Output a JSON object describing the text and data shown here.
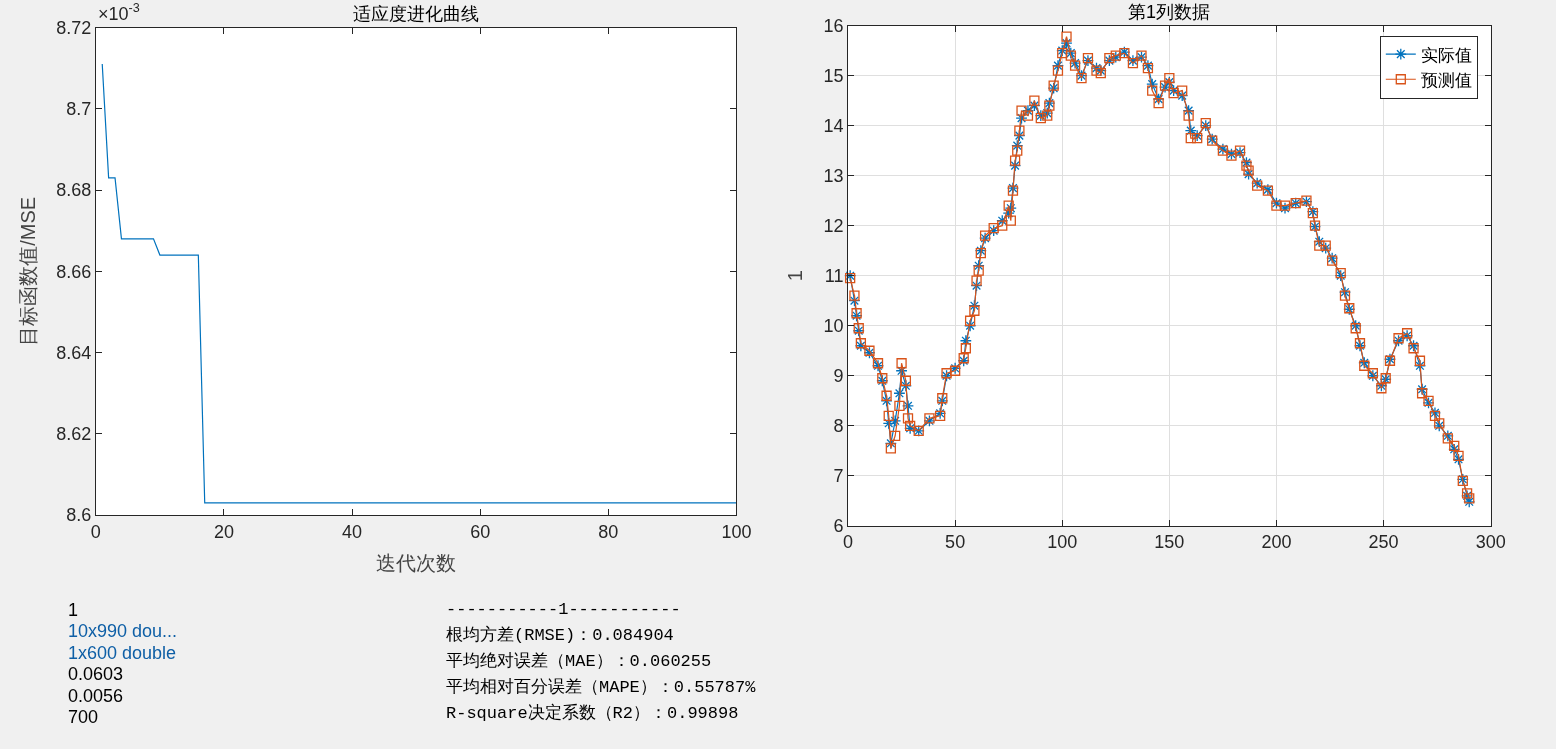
{
  "chart_data": [
    {
      "type": "line",
      "title": "适应度进化曲线",
      "xlabel": "迭代次数",
      "ylabel": "目标函数值/MSE",
      "annotations": [
        "×10$^{-3}$"
      ],
      "x": [
        1,
        2,
        3,
        4,
        5,
        6,
        7,
        8,
        9,
        10,
        11,
        12,
        13,
        14,
        15,
        16,
        17,
        20,
        30,
        40,
        50,
        60,
        70,
        80,
        90,
        100
      ],
      "series": [
        {
          "color": "#0072bd",
          "values": [
            8.711,
            8.683,
            8.683,
            8.668,
            8.668,
            8.668,
            8.668,
            8.668,
            8.668,
            8.664,
            8.664,
            8.664,
            8.664,
            8.664,
            8.664,
            8.664,
            8.603,
            8.603,
            8.603,
            8.603,
            8.603,
            8.603,
            8.603,
            8.603,
            8.603,
            8.603
          ]
        }
      ],
      "xlim": [
        0,
        100
      ],
      "xticks": [
        0,
        20,
        40,
        60,
        80,
        100
      ],
      "ylim": [
        8.6,
        8.72
      ],
      "yticks": [
        8.6,
        8.62,
        8.64,
        8.66,
        8.68,
        8.7,
        8.72
      ],
      "grid": false,
      "legend": false,
      "marker": "none",
      "line_style": "solid"
    },
    {
      "type": "line",
      "title": "第1列数据",
      "ylabel": "1",
      "x": [
        1,
        3,
        4,
        5,
        6,
        10,
        14,
        16,
        18,
        19,
        20,
        22,
        24,
        25,
        27,
        28,
        29,
        33,
        38,
        43,
        44,
        46,
        50,
        54,
        55,
        57,
        59,
        60,
        61,
        62,
        64,
        68,
        72,
        75,
        76,
        77,
        78,
        79,
        80,
        81,
        84,
        87,
        90,
        93,
        94,
        96,
        98,
        100,
        102,
        104,
        106,
        109,
        112,
        116,
        118,
        122,
        125,
        129,
        133,
        137,
        140,
        142,
        145,
        148,
        150,
        152,
        156,
        159,
        160,
        163,
        167,
        170,
        175,
        179,
        183,
        186,
        187,
        191,
        196,
        200,
        204,
        209,
        214,
        217,
        218,
        220,
        223,
        226,
        230,
        232,
        234,
        237,
        239,
        241,
        245,
        249,
        251,
        253,
        257,
        261,
        264,
        267,
        268,
        271,
        274,
        276,
        280,
        283,
        285,
        287,
        289,
        290
      ],
      "series": [
        {
          "name": "实际值",
          "color": "#0072bd",
          "marker": "cross",
          "values": [
            11.0,
            10.5,
            10.2,
            9.9,
            9.6,
            9.46,
            9.2,
            8.9,
            8.5,
            8.05,
            7.65,
            8.1,
            8.65,
            9.1,
            8.8,
            8.4,
            7.95,
            7.9,
            8.1,
            8.25,
            8.5,
            9.0,
            9.15,
            9.3,
            9.7,
            10.0,
            10.4,
            10.8,
            11.2,
            11.5,
            11.75,
            11.9,
            12.1,
            12.25,
            12.35,
            12.75,
            13.2,
            13.6,
            13.8,
            14.15,
            14.3,
            14.4,
            14.2,
            14.25,
            14.45,
            14.75,
            15.2,
            15.5,
            15.65,
            15.45,
            15.25,
            15.0,
            15.3,
            15.15,
            15.1,
            15.3,
            15.37,
            15.47,
            15.3,
            15.37,
            15.2,
            14.83,
            14.53,
            14.77,
            14.87,
            14.7,
            14.6,
            14.3,
            13.9,
            13.8,
            14.0,
            13.73,
            13.53,
            13.43,
            13.46,
            13.26,
            13.03,
            12.85,
            12.72,
            12.45,
            12.35,
            12.45,
            12.48,
            12.28,
            11.98,
            11.68,
            11.55,
            11.35,
            11.0,
            10.67,
            10.33,
            10.0,
            9.6,
            9.26,
            9.0,
            8.8,
            8.93,
            9.33,
            9.7,
            9.8,
            9.6,
            9.2,
            8.73,
            8.46,
            8.26,
            8.0,
            7.8,
            7.53,
            7.33,
            6.93,
            6.6,
            6.48
          ]
        },
        {
          "name": "预测值",
          "color": "#d95319",
          "marker": "square",
          "values": [
            10.95,
            10.6,
            10.25,
            9.95,
            9.65,
            9.5,
            9.25,
            8.95,
            8.6,
            8.2,
            7.55,
            7.8,
            8.4,
            9.25,
            8.9,
            8.15,
            8.0,
            7.9,
            8.15,
            8.2,
            8.55,
            9.05,
            9.1,
            9.35,
            9.55,
            10.1,
            10.3,
            10.9,
            11.1,
            11.45,
            11.8,
            11.95,
            12.0,
            12.4,
            12.1,
            12.7,
            13.3,
            13.5,
            13.9,
            14.3,
            14.2,
            14.5,
            14.15,
            14.2,
            14.4,
            14.8,
            15.1,
            15.45,
            15.78,
            15.4,
            15.2,
            14.95,
            15.35,
            15.1,
            15.05,
            15.35,
            15.4,
            15.45,
            15.25,
            15.4,
            15.15,
            14.7,
            14.45,
            14.8,
            14.95,
            14.65,
            14.7,
            14.2,
            13.75,
            13.75,
            14.05,
            13.7,
            13.5,
            13.4,
            13.5,
            13.2,
            13.1,
            12.8,
            12.7,
            12.4,
            12.4,
            12.45,
            12.5,
            12.25,
            12.0,
            11.6,
            11.6,
            11.3,
            11.05,
            10.6,
            10.35,
            9.95,
            9.65,
            9.2,
            9.05,
            8.75,
            8.95,
            9.3,
            9.75,
            9.85,
            9.55,
            9.3,
            8.65,
            8.5,
            8.2,
            8.05,
            7.75,
            7.6,
            7.4,
            6.9,
            6.65,
            6.55
          ]
        }
      ],
      "xlim": [
        0,
        300
      ],
      "xticks": [
        0,
        50,
        100,
        150,
        200,
        250,
        300
      ],
      "ylim": [
        6,
        16
      ],
      "yticks": [
        6,
        7,
        8,
        9,
        10,
        11,
        12,
        13,
        14,
        15,
        16
      ],
      "grid": true,
      "legend": "top right",
      "line_style": "solid"
    },
    {
      "type": "other",
      "annotations": [
        "1",
        "10x990 dou...",
        "1x600 double",
        "0.0603",
        "0.0056",
        "700"
      ]
    },
    {
      "type": "other",
      "annotations": [
        "-----------1-----------",
        "根均方差(RMSE)：0.084904",
        "平均绝对误差（MAE）：0.060255",
        "平均相对百分误差（MAPE）：0.55787%",
        "R-square决定系数（R2）：0.99898"
      ]
    }
  ]
}
